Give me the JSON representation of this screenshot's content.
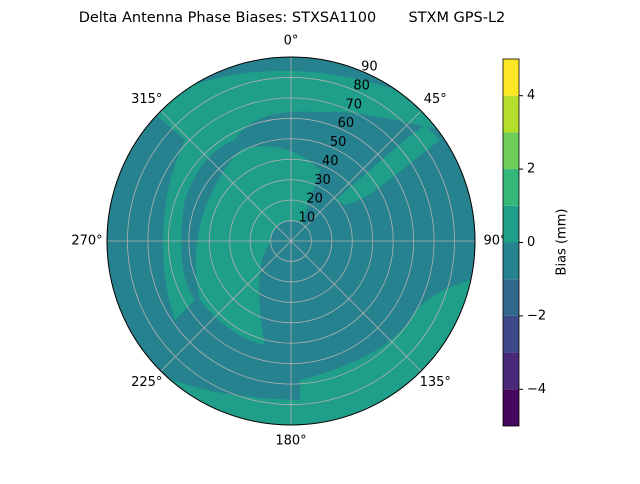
{
  "chart_data": {
    "type": "polar_contour",
    "title": "Delta Antenna Phase Biases: STXSA1100       STXM GPS-L2",
    "rlim": [
      0,
      90
    ],
    "rticks": [
      10,
      20,
      30,
      40,
      50,
      60,
      70,
      80,
      90
    ],
    "thetaticks": [
      {
        "value": 0,
        "label": "0°"
      },
      {
        "value": 45,
        "label": "45°"
      },
      {
        "value": 90,
        "label": "90°"
      },
      {
        "value": 135,
        "label": "135°"
      },
      {
        "value": 180,
        "label": "180°"
      },
      {
        "value": 225,
        "label": "225°"
      },
      {
        "value": 270,
        "label": "270°"
      },
      {
        "value": 315,
        "label": "315°"
      }
    ],
    "grid": true,
    "colorbar": {
      "label": "Bias (mm)",
      "levels": [
        -5,
        -4,
        -3,
        -2,
        -1,
        0,
        1,
        2,
        3,
        4,
        5
      ],
      "colors": [
        "#46085c",
        "#482878",
        "#3e4989",
        "#31688e",
        "#26828e",
        "#1f9e89",
        "#35b779",
        "#6ece58",
        "#b5de2b",
        "#fde725"
      ],
      "ticks": [
        {
          "value": -4,
          "label": "−4"
        },
        {
          "value": -2,
          "label": "−2"
        },
        0,
        2,
        4
      ]
    }
  }
}
